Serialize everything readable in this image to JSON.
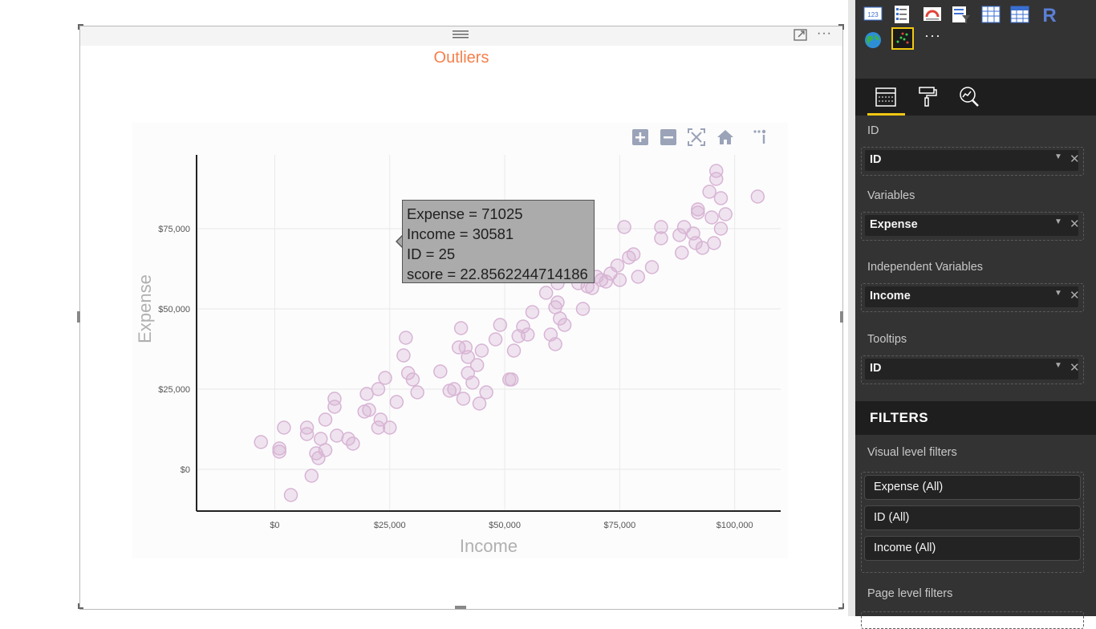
{
  "visual": {
    "title": "Outliers",
    "more_label": "···"
  },
  "tooltip": {
    "lines": [
      "Expense = 71025",
      "Income = 30581",
      "ID = 25",
      "score = 22.8562244714186"
    ]
  },
  "modebar": [
    "zoom-in-icon",
    "zoom-out-icon",
    "autoscale-icon",
    "reset-axes-home-icon",
    "plotly-logo-icon"
  ],
  "chart_data": {
    "type": "scatter",
    "title": "Outliers",
    "xlabel": "Income",
    "ylabel": "Expense",
    "xlim": [
      -17000,
      110000
    ],
    "ylim": [
      -13000,
      98000
    ],
    "x_ticks": [
      0,
      25000,
      50000,
      75000,
      100000
    ],
    "x_tick_labels": [
      "$0",
      "$25,000",
      "$50,000",
      "$75,000",
      "$100,000"
    ],
    "y_ticks": [
      0,
      25000,
      50000,
      75000
    ],
    "y_tick_labels": [
      "$0",
      "$25,000",
      "$50,000",
      "$75,000"
    ],
    "marker_color": "#d8b4d4",
    "highlight_color": "#8a8a8a",
    "highlight_index": 0,
    "grid": true,
    "points": {
      "x": [
        30581,
        -3000,
        1000,
        1000,
        2000,
        3500,
        7000,
        7000,
        8000,
        9000,
        9500,
        10000,
        11000,
        11000,
        13000,
        13000,
        13500,
        16000,
        17000,
        19500,
        20000,
        20500,
        22500,
        22500,
        23000,
        24000,
        25000,
        26500,
        28000,
        28500,
        29000,
        30000,
        31000,
        36000,
        38000,
        39000,
        40000,
        40500,
        41000,
        41500,
        42000,
        42000,
        43000,
        44000,
        44500,
        45000,
        46000,
        48000,
        49000,
        51000,
        51500,
        52000,
        53000,
        54000,
        55000,
        56000,
        59000,
        60000,
        61000,
        61000,
        61500,
        61500,
        62000,
        63000,
        65000,
        66000,
        67000,
        67500,
        68000,
        69000,
        70000,
        71000,
        72000,
        73000,
        74500,
        75000,
        76000,
        77000,
        78000,
        79000,
        82000,
        84000,
        84000,
        88000,
        88500,
        89000,
        91000,
        91500,
        92000,
        92000,
        93000,
        94500,
        95000,
        95500,
        96000,
        96000,
        97000,
        97000,
        98000,
        105000
      ],
      "y": [
        71025,
        8500,
        6500,
        5500,
        13000,
        -8000,
        13000,
        11000,
        -2000,
        5000,
        3500,
        9500,
        15500,
        6000,
        22000,
        19500,
        10500,
        9500,
        8000,
        18000,
        23500,
        18500,
        25000,
        13000,
        15500,
        28500,
        13000,
        21000,
        35500,
        41000,
        30000,
        28000,
        24000,
        30500,
        24500,
        25000,
        38000,
        44000,
        22000,
        38000,
        30000,
        35000,
        27000,
        32500,
        20500,
        37000,
        24000,
        40500,
        45000,
        28000,
        28000,
        37000,
        41500,
        44500,
        42000,
        49000,
        55000,
        42000,
        39000,
        50500,
        58000,
        52000,
        47000,
        45000,
        70500,
        58000,
        50000,
        63500,
        57000,
        56500,
        60000,
        59000,
        58500,
        61000,
        63500,
        59000,
        75500,
        66000,
        67000,
        60000,
        63000,
        75500,
        72000,
        73000,
        67500,
        75500,
        73500,
        70500,
        81000,
        80000,
        69000,
        86500,
        78500,
        70500,
        93000,
        90500,
        84500,
        75000,
        79500,
        85000
      ]
    }
  },
  "panel": {
    "more_label": "···",
    "vis_icons": [
      "kpi-card-icon",
      "multi-row-card-icon",
      "gauge-icon",
      "slicer-icon",
      "table-icon",
      "matrix-icon",
      "r-script-icon",
      "globe-map-icon",
      "scatter-custom-icon"
    ],
    "tabs": [
      "fields-tab-icon",
      "format-paint-roller-icon",
      "analytics-magnifier-icon"
    ],
    "wells": [
      {
        "label": "ID",
        "value": "ID"
      },
      {
        "label": "Variables",
        "value": "Expense"
      },
      {
        "label": "Independent Variables",
        "value": "Income"
      },
      {
        "label": "Tooltips",
        "value": "ID"
      }
    ],
    "filters_title": "FILTERS",
    "visual_level_label": "Visual level filters",
    "visual_filters": [
      "Expense (All)",
      "ID (All)",
      "Income (All)"
    ],
    "page_level_label": "Page level filters"
  }
}
